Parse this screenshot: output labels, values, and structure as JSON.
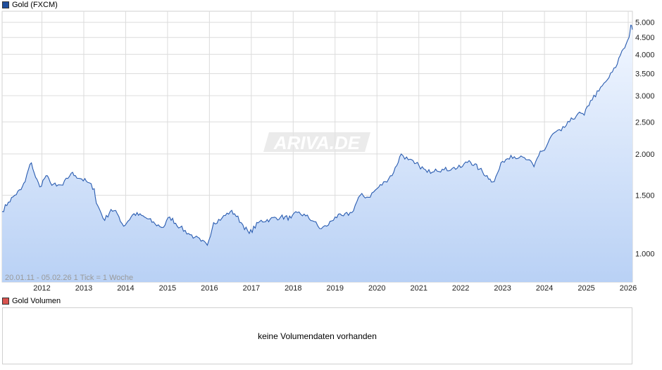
{
  "legend_main": {
    "label": "Gold (FXCM)",
    "color": "#1f4e9c"
  },
  "legend_volume": {
    "label": "Gold Volumen",
    "color": "#d9534f"
  },
  "range_info": "20.01.11 - 05.02.26   1 Tick = 1 Woche",
  "watermark": "ARIVA.DE",
  "volume_message": "keine Volumendaten vorhanden",
  "chart_data": {
    "type": "area",
    "y_scale": "log",
    "ylim": [
      820,
      5400
    ],
    "xlim": [
      2011.05,
      2026.1
    ],
    "grid": true,
    "line_color": "#2a5cb0",
    "y_ticks": [
      {
        "value": 1000,
        "label": "1.000"
      },
      {
        "value": 1500,
        "label": "1.500"
      },
      {
        "value": 2000,
        "label": "2.000"
      },
      {
        "value": 2500,
        "label": "2.500"
      },
      {
        "value": 3000,
        "label": "3.000"
      },
      {
        "value": 3500,
        "label": "3.500"
      },
      {
        "value": 4000,
        "label": "4.000"
      },
      {
        "value": 4500,
        "label": "4.500"
      },
      {
        "value": 5000,
        "label": "5.000"
      }
    ],
    "x_ticks": [
      {
        "value": 2012,
        "label": "2012"
      },
      {
        "value": 2013,
        "label": "2013"
      },
      {
        "value": 2014,
        "label": "2014"
      },
      {
        "value": 2015,
        "label": "2015"
      },
      {
        "value": 2016,
        "label": "2016"
      },
      {
        "value": 2017,
        "label": "2017"
      },
      {
        "value": 2018,
        "label": "2018"
      },
      {
        "value": 2019,
        "label": "2019"
      },
      {
        "value": 2020,
        "label": "2020"
      },
      {
        "value": 2021,
        "label": "2021"
      },
      {
        "value": 2022,
        "label": "2022"
      },
      {
        "value": 2023,
        "label": "2023"
      },
      {
        "value": 2024,
        "label": "2024"
      },
      {
        "value": 2025,
        "label": "2025"
      },
      {
        "value": 2026,
        "label": "2026"
      }
    ],
    "x": [
      2011.05,
      2011.2,
      2011.35,
      2011.5,
      2011.6,
      2011.68,
      2011.75,
      2011.85,
      2011.95,
      2012.1,
      2012.2,
      2012.35,
      2012.5,
      2012.7,
      2012.8,
      2012.95,
      2013.1,
      2013.25,
      2013.3,
      2013.5,
      2013.65,
      2013.8,
      2013.95,
      2014.2,
      2014.45,
      2014.7,
      2014.9,
      2015.05,
      2015.3,
      2015.5,
      2015.65,
      2015.8,
      2015.95,
      2016.1,
      2016.3,
      2016.5,
      2016.6,
      2016.8,
      2016.95,
      2017.2,
      2017.45,
      2017.7,
      2017.95,
      2018.1,
      2018.3,
      2018.5,
      2018.63,
      2018.8,
      2019.0,
      2019.2,
      2019.4,
      2019.6,
      2019.8,
      2020.0,
      2020.2,
      2020.4,
      2020.58,
      2020.75,
      2020.9,
      2021.0,
      2021.2,
      2021.4,
      2021.6,
      2021.8,
      2022.0,
      2022.2,
      2022.45,
      2022.7,
      2022.8,
      2023.0,
      2023.2,
      2023.4,
      2023.6,
      2023.75,
      2023.9,
      2024.0,
      2024.2,
      2024.4,
      2024.6,
      2024.8,
      2024.95,
      2025.1,
      2025.3,
      2025.5,
      2025.7,
      2025.85,
      2025.95,
      2026.02,
      2026.06,
      2026.1
    ],
    "y": [
      1340,
      1430,
      1500,
      1560,
      1650,
      1800,
      1880,
      1700,
      1590,
      1720,
      1640,
      1600,
      1610,
      1750,
      1720,
      1680,
      1640,
      1570,
      1420,
      1260,
      1360,
      1320,
      1210,
      1320,
      1290,
      1230,
      1200,
      1290,
      1200,
      1150,
      1120,
      1090,
      1060,
      1240,
      1280,
      1340,
      1320,
      1220,
      1150,
      1250,
      1270,
      1290,
      1280,
      1330,
      1300,
      1250,
      1190,
      1210,
      1290,
      1300,
      1330,
      1500,
      1480,
      1570,
      1650,
      1760,
      2000,
      1920,
      1870,
      1850,
      1760,
      1800,
      1790,
      1810,
      1820,
      1910,
      1800,
      1680,
      1650,
      1900,
      1980,
      1950,
      1920,
      1830,
      2040,
      2050,
      2300,
      2350,
      2500,
      2650,
      2620,
      2900,
      3100,
      3350,
      3650,
      4100,
      4300,
      4500,
      4900,
      4750
    ]
  }
}
